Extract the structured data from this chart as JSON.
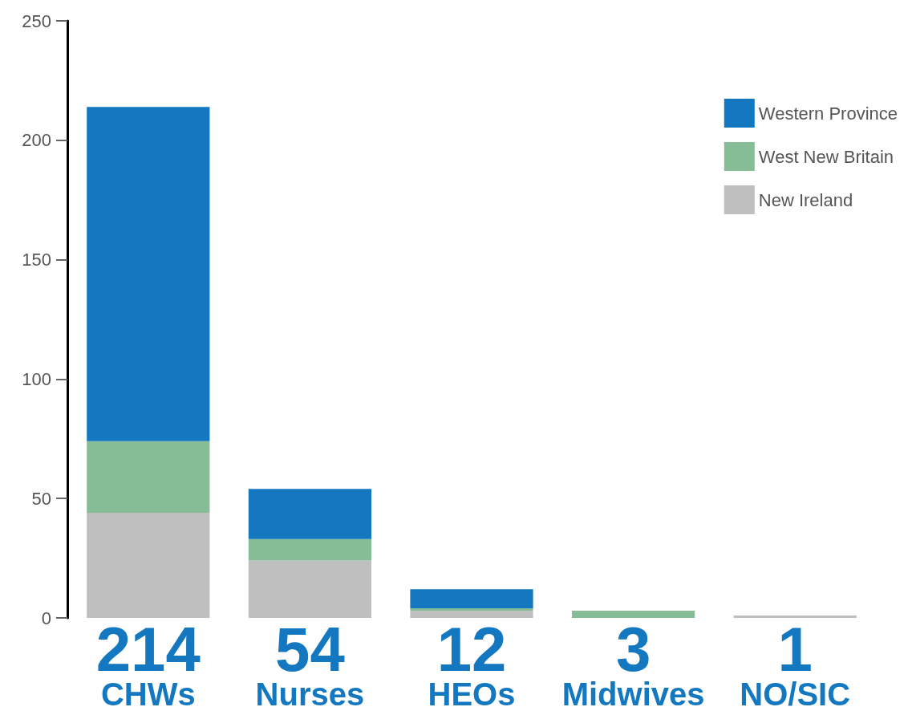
{
  "chart_data": {
    "type": "bar",
    "stacked": true,
    "categories": [
      "CHWs",
      "Nurses",
      "HEOs",
      "Midwives",
      "NO/SIC"
    ],
    "series": [
      {
        "name": "New Ireland",
        "color": "#bfbfbf",
        "values": [
          44,
          24,
          3,
          0,
          1
        ]
      },
      {
        "name": "West New Britain",
        "color": "#86bd96",
        "values": [
          30,
          9,
          1,
          3,
          0
        ]
      },
      {
        "name": "Western Province",
        "color": "#1378c0",
        "values": [
          140,
          21,
          8,
          0,
          0
        ]
      }
    ],
    "totals": [
      "214",
      "54",
      "12",
      "3",
      "1"
    ],
    "ylim": [
      0,
      250
    ],
    "yticks": [
      0,
      50,
      100,
      150,
      200,
      250
    ],
    "grid": false,
    "legend": "top right"
  }
}
